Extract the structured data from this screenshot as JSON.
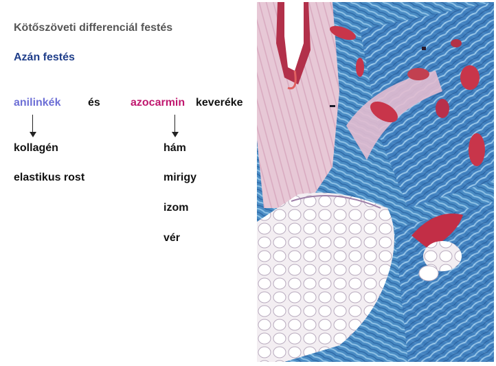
{
  "title": "Kötőszöveti differenciál festés",
  "subtitle": "Azán festés",
  "row": {
    "left_term": "anilinkék",
    "conjunction": "és",
    "right_term": "azocarmin",
    "right_suffix": "keveréke"
  },
  "left_list": [
    "kollagén",
    "elastikus rost"
  ],
  "right_list": [
    "hám",
    "mirigy",
    "izom",
    "vér"
  ],
  "colors": {
    "title": "#555555",
    "subtitle": "#1f3e8a",
    "anilinkek": "#6d6fd6",
    "azocarmin": "#c0186f"
  },
  "image": {
    "subject": "histology-micrograph-azan-stain"
  }
}
